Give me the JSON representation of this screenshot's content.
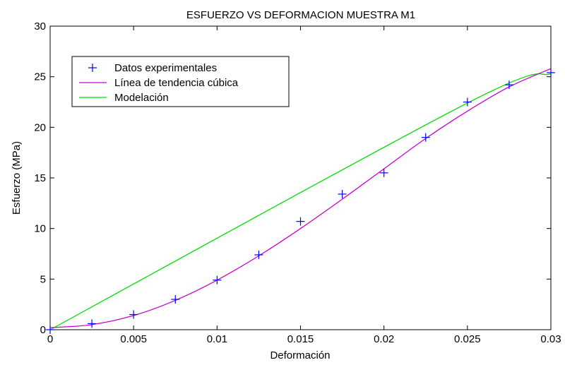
{
  "chart_data": {
    "type": "line",
    "title": "ESFUERZO VS DEFORMACION MUESTRA M1",
    "xlabel": "Deformación",
    "ylabel": "Esfuerzo (MPa)",
    "xlim": [
      0,
      0.03
    ],
    "ylim": [
      0,
      30
    ],
    "x_ticks": [
      0,
      0.005,
      0.01,
      0.015,
      0.02,
      0.025,
      0.03
    ],
    "x_tick_labels": [
      "0",
      "0.005",
      "0.01",
      "0.015",
      "0.02",
      "0.025",
      "0.03"
    ],
    "y_ticks": [
      0,
      5,
      10,
      15,
      20,
      25,
      30
    ],
    "y_tick_labels": [
      "0",
      "5",
      "10",
      "15",
      "20",
      "25",
      "30"
    ],
    "grid": false,
    "legend_position": "top-left",
    "series": [
      {
        "name": "Datos experimentales",
        "kind": "markers",
        "marker": "plus",
        "color": "#0000ff",
        "x": [
          0,
          0.0025,
          0.005,
          0.0075,
          0.01,
          0.0125,
          0.015,
          0.0175,
          0.02,
          0.0225,
          0.025,
          0.0275,
          0.03
        ],
        "y": [
          0,
          0.6,
          1.5,
          3.0,
          4.9,
          7.4,
          10.7,
          13.4,
          15.5,
          19.0,
          22.5,
          24.2,
          25.4
        ]
      },
      {
        "name": "Línea de tendencia cúbica",
        "kind": "line",
        "color": "#cc00cc",
        "x": [
          0,
          0.0025,
          0.005,
          0.0075,
          0.01,
          0.0125,
          0.015,
          0.0175,
          0.02,
          0.0225,
          0.025,
          0.0275,
          0.03
        ],
        "y": [
          0.2,
          0.5,
          1.4,
          2.9,
          4.9,
          7.3,
          10.0,
          12.9,
          15.9,
          18.9,
          21.6,
          24.0,
          25.8
        ]
      },
      {
        "name": "Modelación",
        "kind": "line",
        "color": "#00dd00",
        "x": [
          0,
          0.025,
          0.03
        ],
        "y": [
          0,
          22.4,
          25.3
        ]
      }
    ]
  }
}
